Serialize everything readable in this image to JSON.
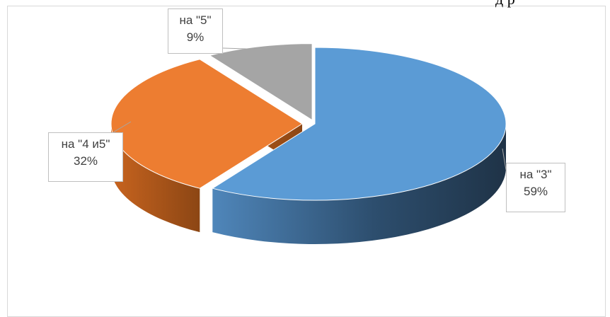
{
  "top_text": "д р",
  "chart_data": {
    "type": "pie",
    "title": "",
    "slices": [
      {
        "category": "на \"3\"",
        "value": 59,
        "value_label": "59%",
        "color": "#5b9bd5"
      },
      {
        "category": "на \"4 и5\"",
        "value": 32,
        "value_label": "32%",
        "color": "#ed7d31"
      },
      {
        "category": "на \"5\"",
        "value": 9,
        "value_label": "9%",
        "color": "#a5a5a5"
      }
    ],
    "style": "3d-exploded",
    "legend": "none"
  }
}
